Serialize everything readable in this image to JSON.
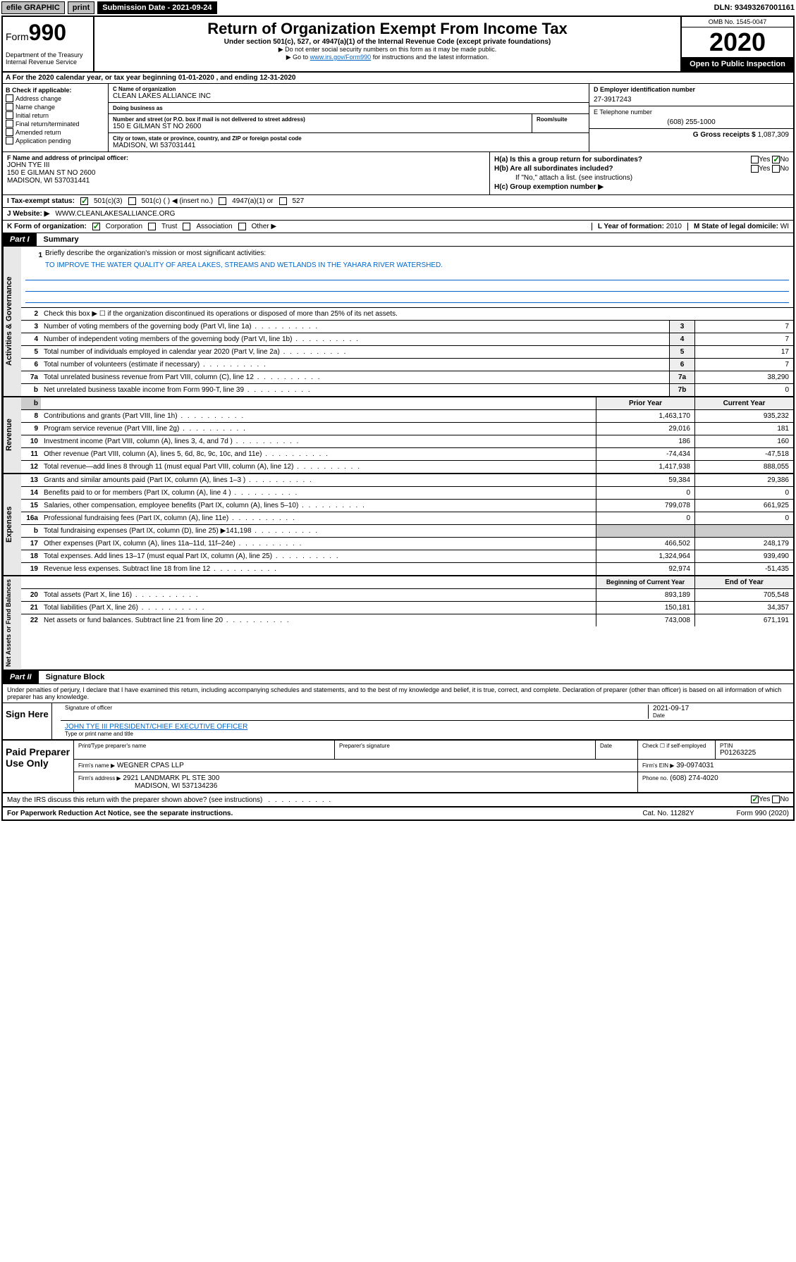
{
  "topbar": {
    "efile": "efile GRAPHIC",
    "print": "print",
    "submission_label": "Submission Date - 2021-09-24",
    "dln": "DLN: 93493267001161"
  },
  "header": {
    "form_prefix": "Form",
    "form_number": "990",
    "title": "Return of Organization Exempt From Income Tax",
    "subtitle": "Under section 501(c), 527, or 4947(a)(1) of the Internal Revenue Code (except private foundations)",
    "note1": "▶ Do not enter social security numbers on this form as it may be made public.",
    "note2_pre": "▶ Go to ",
    "note2_link": "www.irs.gov/Form990",
    "note2_post": " for instructions and the latest information.",
    "dept": "Department of the Treasury\nInternal Revenue Service",
    "omb": "OMB No. 1545-0047",
    "year": "2020",
    "open": "Open to Public Inspection"
  },
  "period": "For the 2020 calendar year, or tax year beginning 01-01-2020    , and ending 12-31-2020",
  "checkboxes": {
    "header": "B Check if applicable:",
    "items": [
      "Address change",
      "Name change",
      "Initial return",
      "Final return/terminated",
      "Amended return",
      "Application pending"
    ]
  },
  "org": {
    "name_label": "C Name of organization",
    "name": "CLEAN LAKES ALLIANCE INC",
    "dba_label": "Doing business as",
    "dba": "",
    "addr_label": "Number and street (or P.O. box if mail is not delivered to street address)",
    "addr": "150 E GILMAN ST NO 2600",
    "room_label": "Room/suite",
    "room": "",
    "city_label": "City or town, state or province, country, and ZIP or foreign postal code",
    "city": "MADISON, WI  537031441"
  },
  "ein": {
    "label": "D Employer identification number",
    "value": "27-3917243"
  },
  "phone": {
    "label": "E Telephone number",
    "value": "(608) 255-1000"
  },
  "gross": {
    "label": "G Gross receipts $",
    "value": "1,087,309"
  },
  "officer": {
    "label": "F Name and address of principal officer:",
    "name": "JOHN TYE III",
    "addr1": "150 E GILMAN ST NO 2600",
    "addr2": "MADISON, WI  537031441"
  },
  "h": {
    "a_label": "H(a)  Is this a group return for subordinates?",
    "b_label": "H(b)  Are all subordinates included?",
    "b_note": "If \"No,\" attach a list. (see instructions)",
    "c_label": "H(c)  Group exemption number ▶",
    "yes": "Yes",
    "no": "No"
  },
  "tax_status": {
    "label": "I    Tax-exempt status:",
    "opt1": "501(c)(3)",
    "opt2": "501(c) (   ) ◀ (insert no.)",
    "opt3": "4947(a)(1) or",
    "opt4": "527"
  },
  "website": {
    "label": "J    Website: ▶",
    "value": "WWW.CLEANLAKESALLIANCE.ORG"
  },
  "k": {
    "label": "K Form of organization:",
    "corp": "Corporation",
    "trust": "Trust",
    "assoc": "Association",
    "other": "Other ▶"
  },
  "l": {
    "label": "L Year of formation:",
    "value": "2010"
  },
  "m": {
    "label": "M State of legal domicile:",
    "value": "WI"
  },
  "part1": {
    "tab": "Part I",
    "title": "Summary"
  },
  "mission": {
    "num": "1",
    "label": "Briefly describe the organization's mission or most significant activities:",
    "text": "TO IMPROVE THE WATER QUALITY OF AREA LAKES, STREAMS AND WETLANDS IN THE YAHARA RIVER WATERSHED."
  },
  "gov_rows": [
    {
      "num": "2",
      "text": "Check this box ▶ ☐  if the organization discontinued its operations or disposed of more than 25% of its net assets."
    },
    {
      "num": "3",
      "text": "Number of voting members of the governing body (Part VI, line 1a)",
      "box": "3",
      "val": "7"
    },
    {
      "num": "4",
      "text": "Number of independent voting members of the governing body (Part VI, line 1b)",
      "box": "4",
      "val": "7"
    },
    {
      "num": "5",
      "text": "Total number of individuals employed in calendar year 2020 (Part V, line 2a)",
      "box": "5",
      "val": "17"
    },
    {
      "num": "6",
      "text": "Total number of volunteers (estimate if necessary)",
      "box": "6",
      "val": "7"
    },
    {
      "num": "7a",
      "text": "Total unrelated business revenue from Part VIII, column (C), line 12",
      "box": "7a",
      "val": "38,290"
    },
    {
      "num": "b",
      "text": "Net unrelated business taxable income from Form 990-T, line 39",
      "box": "7b",
      "val": "0"
    }
  ],
  "rev_header": {
    "prior": "Prior Year",
    "current": "Current Year"
  },
  "rev_rows": [
    {
      "num": "8",
      "text": "Contributions and grants (Part VIII, line 1h)",
      "prior": "1,463,170",
      "curr": "935,232"
    },
    {
      "num": "9",
      "text": "Program service revenue (Part VIII, line 2g)",
      "prior": "29,016",
      "curr": "181"
    },
    {
      "num": "10",
      "text": "Investment income (Part VIII, column (A), lines 3, 4, and 7d )",
      "prior": "186",
      "curr": "160"
    },
    {
      "num": "11",
      "text": "Other revenue (Part VIII, column (A), lines 5, 6d, 8c, 9c, 10c, and 11e)",
      "prior": "-74,434",
      "curr": "-47,518"
    },
    {
      "num": "12",
      "text": "Total revenue—add lines 8 through 11 (must equal Part VIII, column (A), line 12)",
      "prior": "1,417,938",
      "curr": "888,055"
    }
  ],
  "exp_rows": [
    {
      "num": "13",
      "text": "Grants and similar amounts paid (Part IX, column (A), lines 1–3 )",
      "prior": "59,384",
      "curr": "29,386"
    },
    {
      "num": "14",
      "text": "Benefits paid to or for members (Part IX, column (A), line 4 )",
      "prior": "0",
      "curr": "0"
    },
    {
      "num": "15",
      "text": "Salaries, other compensation, employee benefits (Part IX, column (A), lines 5–10)",
      "prior": "799,078",
      "curr": "661,925"
    },
    {
      "num": "16a",
      "text": "Professional fundraising fees (Part IX, column (A), line 11e)",
      "prior": "0",
      "curr": "0"
    },
    {
      "num": "b",
      "text": "Total fundraising expenses (Part IX, column (D), line 25) ▶141,198",
      "prior": "",
      "curr": "",
      "shaded": true
    },
    {
      "num": "17",
      "text": "Other expenses (Part IX, column (A), lines 11a–11d, 11f–24e)",
      "prior": "466,502",
      "curr": "248,179"
    },
    {
      "num": "18",
      "text": "Total expenses. Add lines 13–17 (must equal Part IX, column (A), line 25)",
      "prior": "1,324,964",
      "curr": "939,490"
    },
    {
      "num": "19",
      "text": "Revenue less expenses. Subtract line 18 from line 12",
      "prior": "92,974",
      "curr": "-51,435"
    }
  ],
  "na_header": {
    "begin": "Beginning of Current Year",
    "end": "End of Year"
  },
  "na_rows": [
    {
      "num": "20",
      "text": "Total assets (Part X, line 16)",
      "prior": "893,189",
      "curr": "705,548"
    },
    {
      "num": "21",
      "text": "Total liabilities (Part X, line 26)",
      "prior": "150,181",
      "curr": "34,357"
    },
    {
      "num": "22",
      "text": "Net assets or fund balances. Subtract line 21 from line 20",
      "prior": "743,008",
      "curr": "671,191"
    }
  ],
  "vtabs": {
    "gov": "Activities & Governance",
    "rev": "Revenue",
    "exp": "Expenses",
    "na": "Net Assets or Fund Balances"
  },
  "part2": {
    "tab": "Part II",
    "title": "Signature Block"
  },
  "declare": "Under penalties of perjury, I declare that I have examined this return, including accompanying schedules and statements, and to the best of my knowledge and belief, it is true, correct, and complete. Declaration of preparer (other than officer) is based on all information of which preparer has any knowledge.",
  "sign": {
    "here": "Sign Here",
    "sig_label": "Signature of officer",
    "date": "2021-09-17",
    "date_label": "Date",
    "name": "JOHN TYE III PRESIDENT/CHIEF EXECUTIVE OFFICER",
    "name_label": "Type or print name and title"
  },
  "paid": {
    "title": "Paid Preparer Use Only",
    "h1": "Print/Type preparer's name",
    "h2": "Preparer's signature",
    "h3": "Date",
    "h4_chk": "Check ☐ if self-employed",
    "h5": "PTIN",
    "ptin": "P01263225",
    "firm_name_label": "Firm's name    ▶",
    "firm_name": "WEGNER CPAS LLP",
    "firm_ein_label": "Firm's EIN ▶",
    "firm_ein": "39-0974031",
    "firm_addr_label": "Firm's address ▶",
    "firm_addr": "2921 LANDMARK PL STE 300",
    "firm_city": "MADISON, WI  537134236",
    "phone_label": "Phone no.",
    "phone": "(608) 274-4020"
  },
  "discuss": {
    "text": "May the IRS discuss this return with the preparer shown above? (see instructions)",
    "yes": "Yes",
    "no": "No"
  },
  "footer": {
    "left": "For Paperwork Reduction Act Notice, see the separate instructions.",
    "mid": "Cat. No. 11282Y",
    "right": "Form 990 (2020)"
  }
}
